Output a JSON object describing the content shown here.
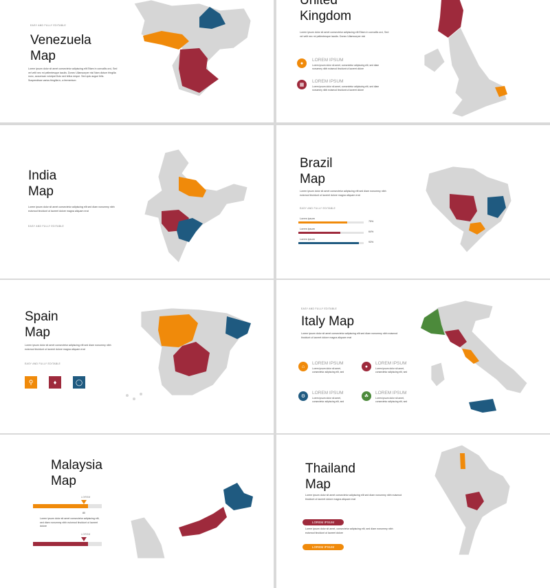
{
  "colors": {
    "orange": "#f08a0a",
    "red": "#9e2a3c",
    "blue": "#1f5a80",
    "green": "#4c8a3b",
    "gray": "#d6d6d6"
  },
  "lorem_short": "Lorem ipsum dolor sit amet consectetur adipiscing elit sed diam nonummy nibh euismod tincidunt ut laoreet dolore magna aliquam erat",
  "lorem_long": "Lorem ipsum dolor sit amet consectetur adipiscing elit Etiam in convallis orci, Sed vel velit nec mi pellentesque iaculis. Donec Ullamcorper nisl Nam dictum fringilla nunc, accumsan volutpat Duis sed tellus neque. Sed quis augue felis. Suspendisse varius fringilla in, a fermentum",
  "editable_tag": "EASY AND FULLY EDITABLE",
  "venezuela": {
    "title_line1": "Venezuela",
    "title_line2": "Map",
    "icons": [
      "search-icon",
      "diamond-icon",
      "globe-icon"
    ]
  },
  "uk": {
    "title_line1": "United",
    "title_line2": "Kingdom",
    "body": "Lorem ipsum dolor sit amet consectetur adipiscing elit Etiam in convallis orci, Sed vel velit nec mi pellentesque iaculis. Donec Ullamcorper nisl",
    "items": [
      {
        "title": "LOREM IPSUM",
        "text": "Lorem ipsum dolor sit amet, consectetur adipiscing elit, sed diam nonummy nibh euismod tincidunt ut laoreet dolore"
      },
      {
        "title": "LOREM IPSUM",
        "text": "Lorem ipsum dolor sit amet, consectetur adipiscing elit, sed diam nonummy nibh euismod tincidunt ut laoreet dolore"
      }
    ]
  },
  "india": {
    "title_line1": "India",
    "title_line2": "Map"
  },
  "brazil": {
    "title_line1": "Brazil",
    "title_line2": "Map",
    "bars": [
      {
        "label": "Lorem ipsum",
        "value": 0.75,
        "pct": "75%",
        "color": "#f08a0a"
      },
      {
        "label": "Lorem ipsum",
        "value": 0.64,
        "pct": "64%",
        "color": "#9e2a3c"
      },
      {
        "label": "Lorem ipsum",
        "value": 0.93,
        "pct": "93%",
        "color": "#1f5a80"
      }
    ]
  },
  "spain": {
    "title_line1": "Spain",
    "title_line2": "Map",
    "icons": [
      "search-icon",
      "diamond-icon",
      "globe-icon"
    ]
  },
  "italy": {
    "title": "Italy Map",
    "items": [
      {
        "title": "LOREM IPSUM",
        "text": "Lorem ipsum dolor sit amet, consectetur adipiscing elit, sed"
      },
      {
        "title": "LOREM IPSUM",
        "text": "Lorem ipsum dolor sit amet, consectetur adipiscing elit, sed"
      },
      {
        "title": "LOREM IPSUM",
        "text": "Lorem ipsum dolor sit amet, consectetur adipiscing elit, sed"
      },
      {
        "title": "LOREM IPSUM",
        "text": "Lorem ipsum dolor sit amet, consectetur adipiscing elit, sed"
      }
    ]
  },
  "malaysia": {
    "title_line1": "Malaysia",
    "title_line2": "Map",
    "bar_label": "LOREM",
    "bar_value": "80",
    "bar_caption": "Lorem ipsum dolor sit amet consectetur adipiscing elit, sed diam nonummy nibh euismod tincidunt ut laoreet dolore"
  },
  "thailand": {
    "title_line1": "Thailand",
    "title_line2": "Map",
    "pills": [
      "LOREM IPSUM",
      "LOREM IPSUM"
    ],
    "pill_text": "Lorem ipsum dolor sit amet, consectetur adipiscing elit, sed diam nonummy nibh euismod tincidunt ut laoreet dolore"
  }
}
